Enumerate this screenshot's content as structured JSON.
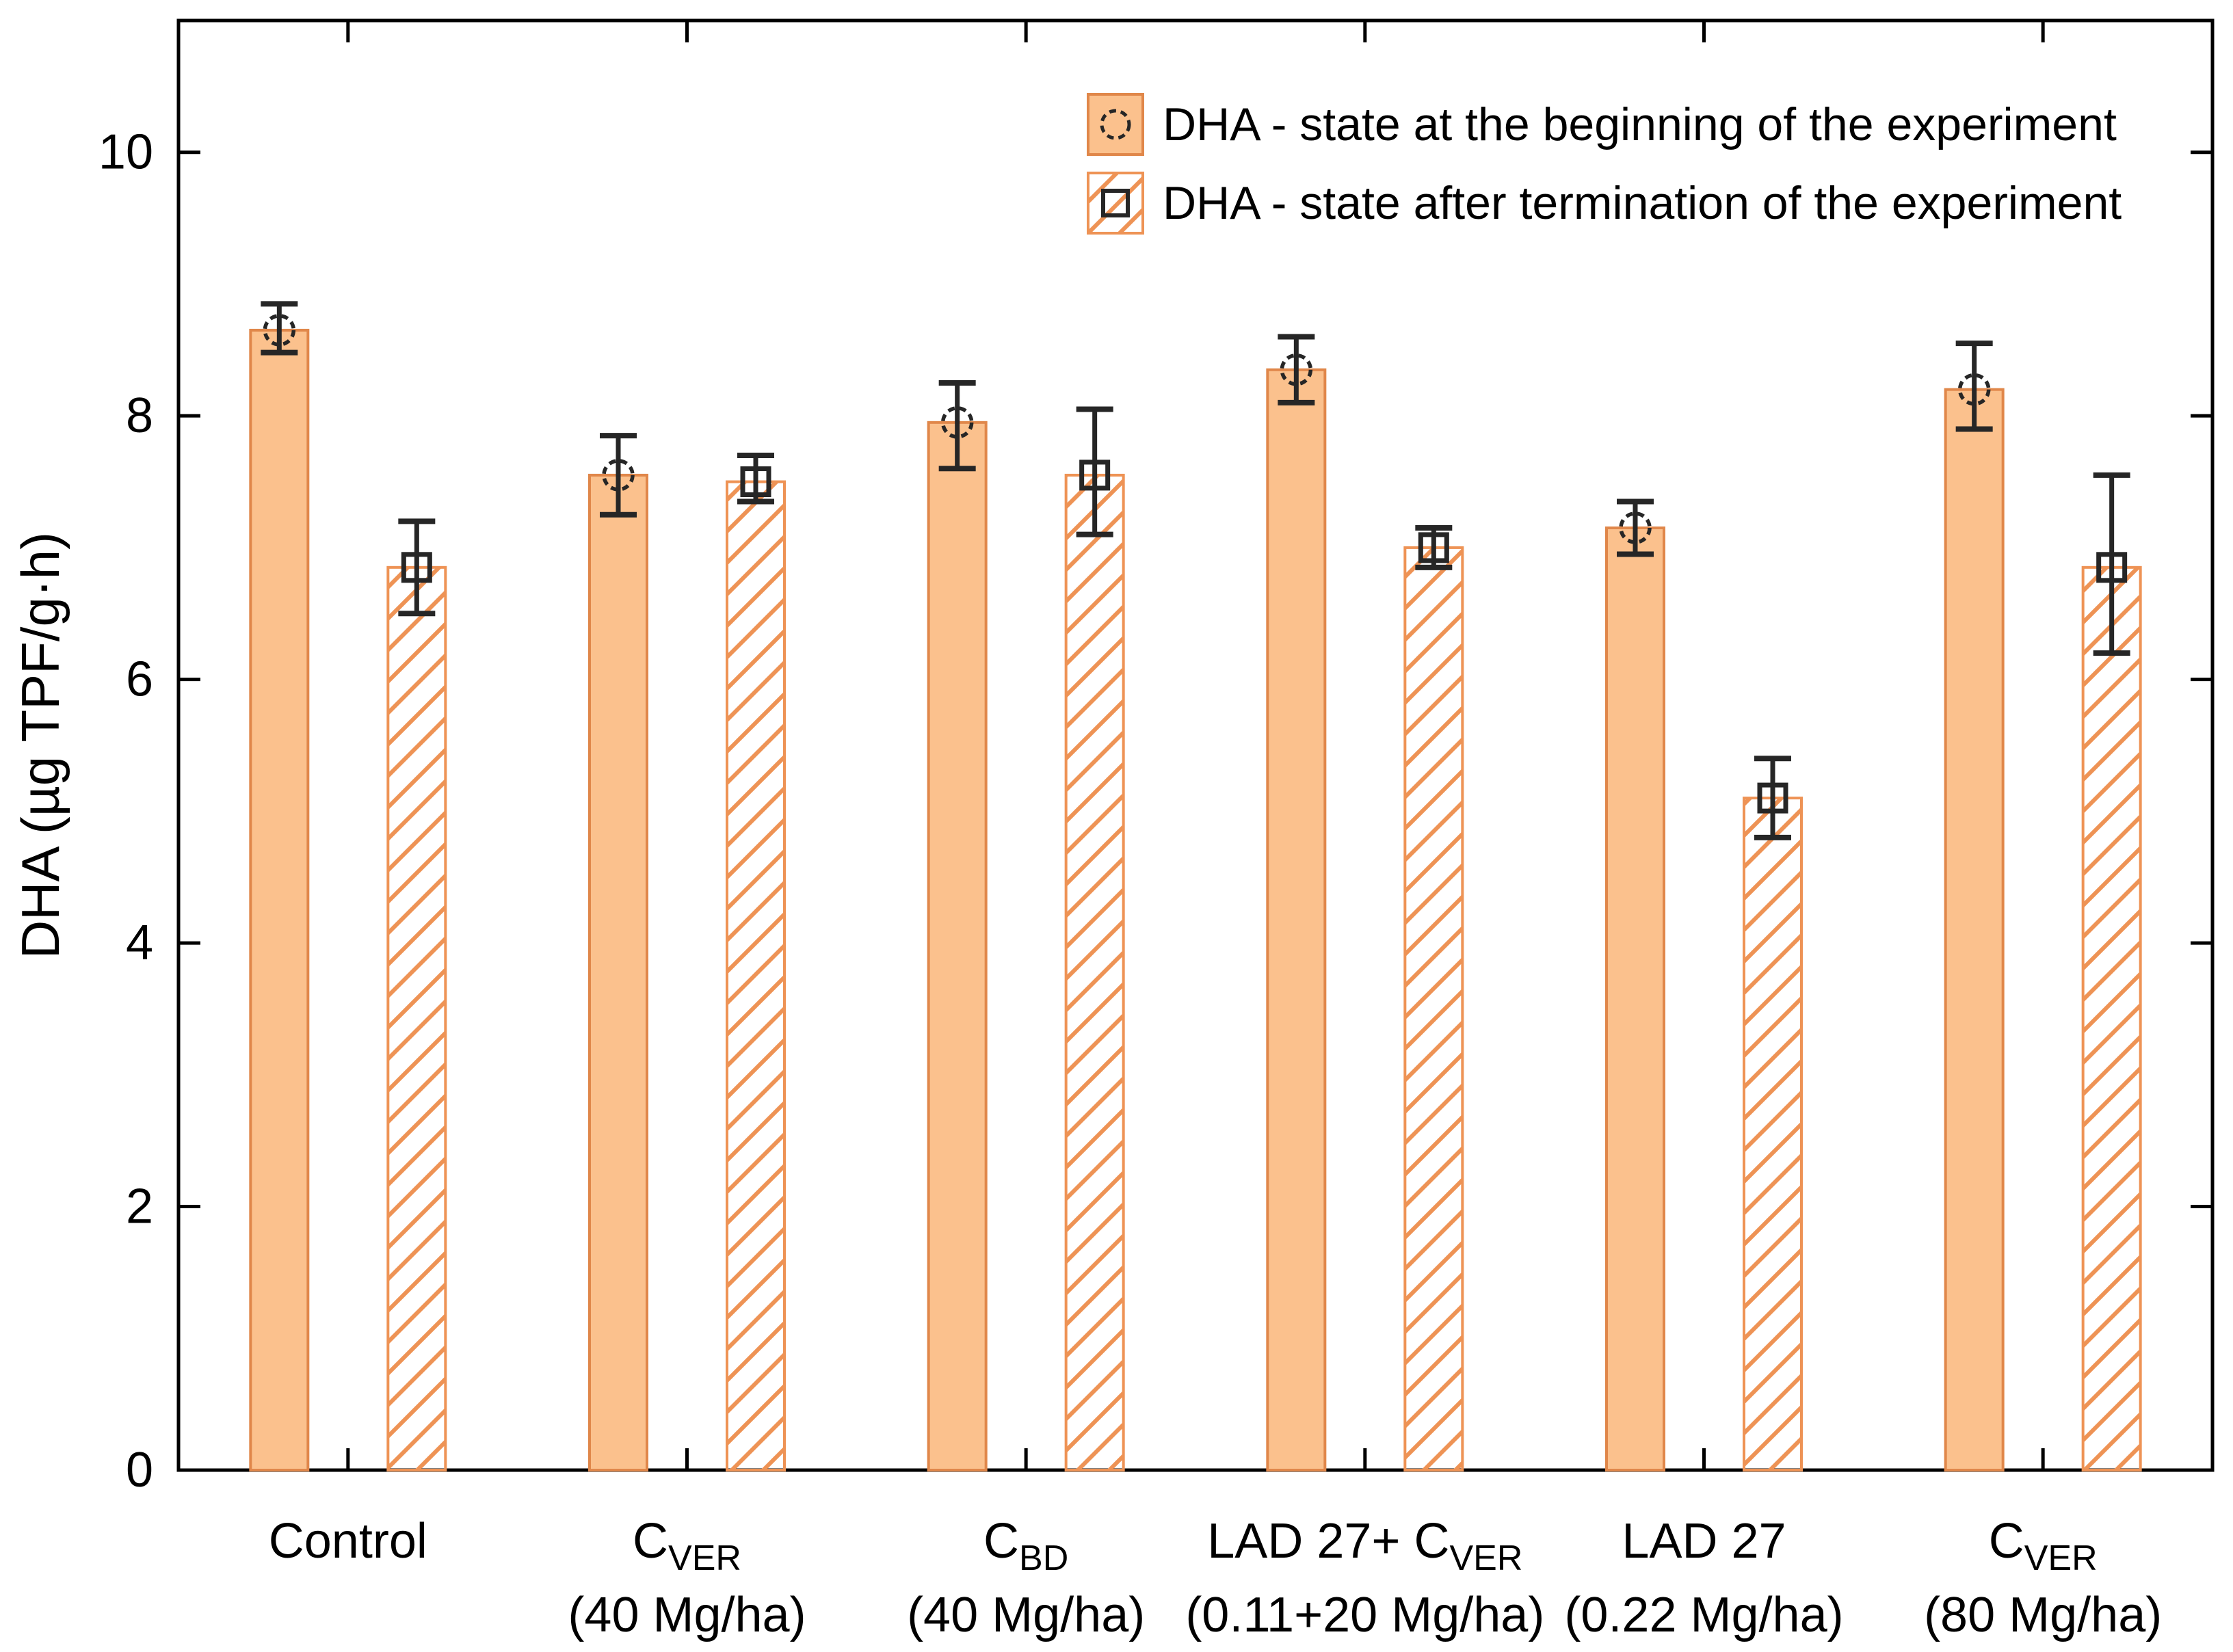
{
  "chart_data": {
    "type": "bar",
    "title": "",
    "ylabel": "DHA (µg TPF/g·h)",
    "xlabel": "",
    "ylim": [
      0,
      11
    ],
    "yticks": [
      0,
      2,
      4,
      6,
      8,
      10
    ],
    "grid": false,
    "legend_position": "top-center-inside",
    "categories": [
      {
        "slug": "control",
        "name": "Control",
        "line1": [
          {
            "t": "Control",
            "sub": false
          }
        ],
        "line2": ""
      },
      {
        "slug": "c-ver-40",
        "name": "C_VER (40 Mg/ha)",
        "line1": [
          {
            "t": "C",
            "sub": false
          },
          {
            "t": "VER",
            "sub": true
          }
        ],
        "line2": "(40 Mg/ha)"
      },
      {
        "slug": "c-bd-40",
        "name": "C_BD (40 Mg/ha)",
        "line1": [
          {
            "t": "C",
            "sub": false
          },
          {
            "t": "BD",
            "sub": true
          }
        ],
        "line2": "(40 Mg/ha)"
      },
      {
        "slug": "lad-27-c-ver",
        "name": "LAD 27+ C_VER (0.11+20 Mg/ha)",
        "line1": [
          {
            "t": "LAD 27+ C",
            "sub": false
          },
          {
            "t": "VER",
            "sub": true
          }
        ],
        "line2": "(0.11+20 Mg/ha)"
      },
      {
        "slug": "lad-27",
        "name": "LAD 27 (0.22 Mg/ha)",
        "line1": [
          {
            "t": "LAD 27",
            "sub": false
          }
        ],
        "line2": "(0.22 Mg/ha)"
      },
      {
        "slug": "c-ver-80",
        "name": "C_VER (80 Mg/ha)",
        "line1": [
          {
            "t": "C",
            "sub": false
          },
          {
            "t": "VER",
            "sub": true
          }
        ],
        "line2": "(80 Mg/ha)"
      }
    ],
    "series": [
      {
        "name": "DHA - state at the beginning of the experiment",
        "style": "solid",
        "marker": "circle",
        "values": [
          8.65,
          7.55,
          7.95,
          8.35,
          7.15,
          8.2
        ],
        "err_low": [
          8.48,
          7.25,
          7.6,
          8.1,
          6.95,
          7.9
        ],
        "err_high": [
          8.85,
          7.85,
          8.25,
          8.6,
          7.35,
          8.55
        ]
      },
      {
        "name": "DHA - state after termination of the experiment",
        "style": "hatch",
        "marker": "square",
        "values": [
          6.85,
          7.5,
          7.55,
          7.0,
          5.1,
          6.85
        ],
        "err_low": [
          6.5,
          7.35,
          7.1,
          6.85,
          4.8,
          6.2
        ],
        "err_high": [
          7.2,
          7.7,
          8.05,
          7.15,
          5.4,
          7.55
        ]
      }
    ],
    "colors": {
      "bar_fill": "#FBC18D",
      "bar_border": "#E0874A",
      "hatch_line": "#EE9355",
      "hatch_border": "#EE9355",
      "error_bar": "#262626",
      "marker": "#262626",
      "axis": "#000000",
      "background": "#ffffff"
    }
  }
}
